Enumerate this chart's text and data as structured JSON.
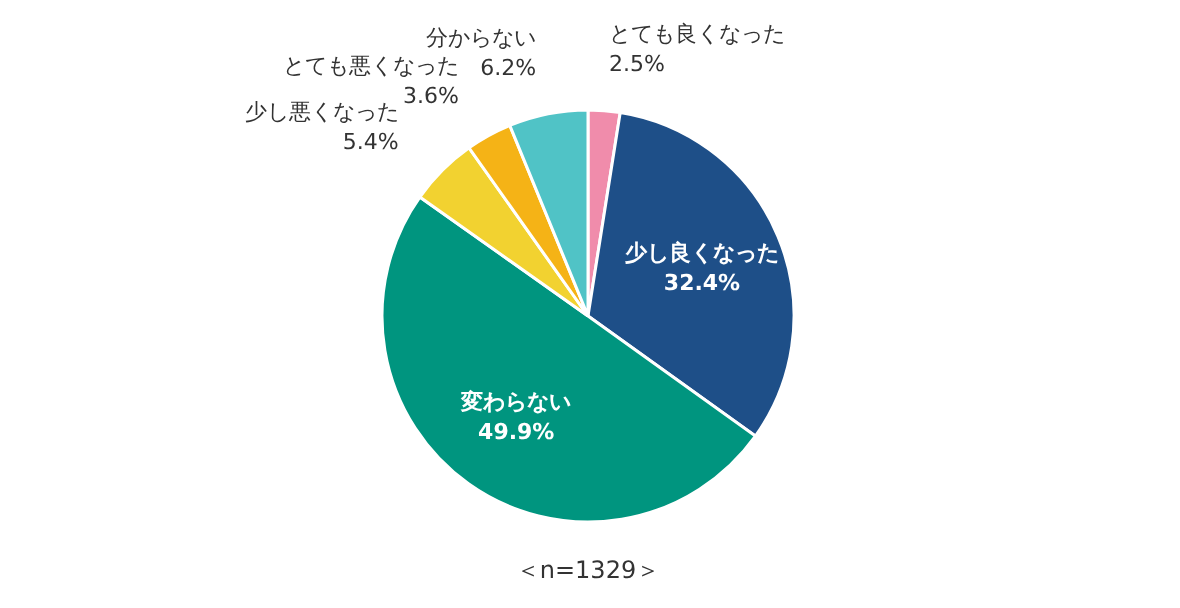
{
  "chart_data": {
    "type": "pie",
    "categories": [
      "とても良くなった",
      "少し良くなった",
      "変わらない",
      "少し悪くなった",
      "とても悪くなった",
      "分からない"
    ],
    "values": [
      2.5,
      32.4,
      49.9,
      5.4,
      3.6,
      6.2
    ],
    "colors": [
      "#f08cab",
      "#1e4f88",
      "#00957f",
      "#f2d230",
      "#f5b316",
      "#50c3c6"
    ],
    "value_labels": [
      "2.5%",
      "32.4%",
      "49.9%",
      "5.4%",
      "3.6%",
      "6.2%"
    ],
    "annotations": [
      "＜n=1329＞"
    ]
  }
}
